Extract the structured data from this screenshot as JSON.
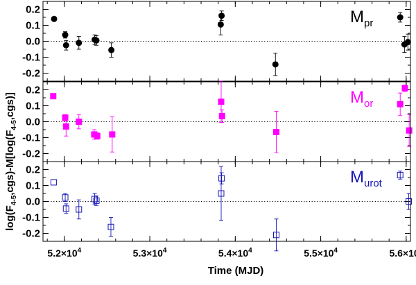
{
  "chart_data": {
    "type": "scatter",
    "xlabel": "Time (MJD)",
    "ylabel_parts": {
      "a": "log(F",
      "a_sub": "4-5",
      "b": ",cgs)-M[log(F",
      "b_sub": "4-5",
      "c": ",cgs)]"
    },
    "xlim": [
      51750,
      56050
    ],
    "ylim": [
      -0.25,
      0.25
    ],
    "x_ticks": [
      {
        "value": 52000,
        "mant": "5.2×10",
        "exp": "4"
      },
      {
        "value": 53000,
        "mant": "5.3×10",
        "exp": "4"
      },
      {
        "value": 54000,
        "mant": "5.4×10",
        "exp": "4"
      },
      {
        "value": 55000,
        "mant": "5.5×10",
        "exp": "4"
      },
      {
        "value": 56000,
        "mant": "5.6×10",
        "exp": "4"
      }
    ],
    "y_ticks": [
      {
        "value": 0.2,
        "label": "0.2"
      },
      {
        "value": 0.1,
        "label": "0.1"
      },
      {
        "value": 0.0,
        "label": "0.0"
      },
      {
        "value": -0.1,
        "label": "-0.1"
      },
      {
        "value": -0.2,
        "label": "-0.2"
      }
    ],
    "panels": [
      {
        "label": "M",
        "label_sub": "pr",
        "color": "#000000",
        "marker": "filled-circle",
        "points": [
          {
            "x": 51880,
            "y": 0.14,
            "err": 0.0
          },
          {
            "x": 52010,
            "y": 0.04,
            "err": 0.02
          },
          {
            "x": 52020,
            "y": -0.025,
            "err": 0.03
          },
          {
            "x": 52170,
            "y": -0.01,
            "err": 0.04
          },
          {
            "x": 52355,
            "y": 0.01,
            "err": 0.03
          },
          {
            "x": 52375,
            "y": 0.005,
            "err": 0.03
          },
          {
            "x": 52550,
            "y": -0.055,
            "err": 0.045
          },
          {
            "x": 53840,
            "y": 0.16,
            "err": 0.03
          },
          {
            "x": 53830,
            "y": 0.105,
            "err": 0.065
          },
          {
            "x": 54470,
            "y": -0.145,
            "err": 0.07
          },
          {
            "x": 55930,
            "y": 0.15,
            "err": 0.03
          },
          {
            "x": 55980,
            "y": -0.02,
            "err": 0.05
          },
          {
            "x": 56020,
            "y": -0.005,
            "err": 0.05
          }
        ]
      },
      {
        "label": "M",
        "label_sub": "or",
        "color": "#ff00ff",
        "marker": "filled-square",
        "points": [
          {
            "x": 51870,
            "y": 0.16,
            "err": 0.0
          },
          {
            "x": 52010,
            "y": 0.025,
            "err": 0.02
          },
          {
            "x": 52020,
            "y": -0.03,
            "err": 0.06
          },
          {
            "x": 52170,
            "y": 0.0,
            "err": 0.045
          },
          {
            "x": 52350,
            "y": -0.08,
            "err": 0.03
          },
          {
            "x": 52385,
            "y": -0.09,
            "err": 0.02
          },
          {
            "x": 52560,
            "y": -0.08,
            "err": 0.11
          },
          {
            "x": 53835,
            "y": 0.125,
            "err": 0.13
          },
          {
            "x": 53845,
            "y": 0.035,
            "err": 0.04
          },
          {
            "x": 54480,
            "y": -0.065,
            "err": 0.13
          },
          {
            "x": 55930,
            "y": 0.11,
            "err": 0.07
          },
          {
            "x": 55985,
            "y": 0.21,
            "err": 0.02
          },
          {
            "x": 56035,
            "y": -0.055,
            "err": 0.1
          }
        ]
      },
      {
        "label": "M",
        "label_sub": "urot",
        "color": "#1414b4",
        "marker": "open-square",
        "points": [
          {
            "x": 51875,
            "y": 0.12,
            "err": 0.0
          },
          {
            "x": 52010,
            "y": 0.025,
            "err": 0.025
          },
          {
            "x": 52020,
            "y": -0.045,
            "err": 0.03
          },
          {
            "x": 52170,
            "y": -0.05,
            "err": 0.06
          },
          {
            "x": 52355,
            "y": 0.015,
            "err": 0.035
          },
          {
            "x": 52375,
            "y": 0.005,
            "err": 0.03
          },
          {
            "x": 52545,
            "y": -0.16,
            "err": 0.06
          },
          {
            "x": 53840,
            "y": 0.145,
            "err": 0.035
          },
          {
            "x": 53835,
            "y": 0.05,
            "err": 0.17
          },
          {
            "x": 54480,
            "y": -0.21,
            "err": 0.1
          },
          {
            "x": 55930,
            "y": 0.165,
            "err": 0.025
          },
          {
            "x": 56030,
            "y": 0.0,
            "err": 0.05
          }
        ]
      }
    ]
  }
}
